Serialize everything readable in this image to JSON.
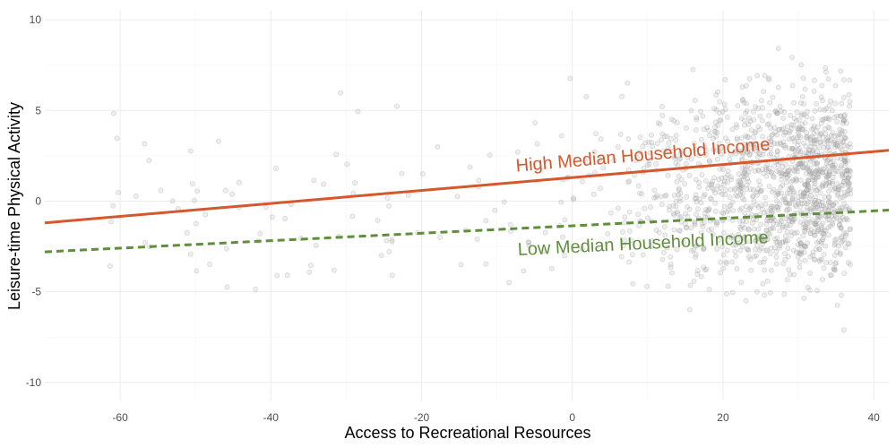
{
  "chart_data": {
    "type": "scatter",
    "title": "",
    "xlabel": "Access to Recreational Resources",
    "ylabel": "Leisure-time Physical Activity",
    "xlim": [
      -70,
      42
    ],
    "ylim": [
      -11,
      10.5
    ],
    "xticks": [
      -60,
      -40,
      -20,
      0,
      20,
      40
    ],
    "yticks": [
      -10,
      -5,
      0,
      5,
      10
    ],
    "grid": true,
    "legend": "none",
    "points_description_note_removed": true,
    "scatter": {
      "color": "#9e9e9e",
      "x_range": [
        -63,
        37
      ],
      "y_range": [
        -10,
        10
      ],
      "n_points": 1500
    },
    "series": [
      {
        "name": "High Median Household Income",
        "type": "line",
        "style": "solid",
        "color": "#d4582c",
        "x": [
          -70,
          42
        ],
        "y": [
          -1.2,
          2.8
        ]
      },
      {
        "name": "Low Median Household Income",
        "type": "line",
        "style": "dashed",
        "color": "#5f8f3a",
        "x": [
          -70,
          42
        ],
        "y": [
          -2.8,
          -0.5
        ]
      }
    ],
    "annotations": [
      {
        "text": "High Median Household Income",
        "series": 0
      },
      {
        "text": "Low Median Household Income",
        "series": 1
      }
    ]
  }
}
